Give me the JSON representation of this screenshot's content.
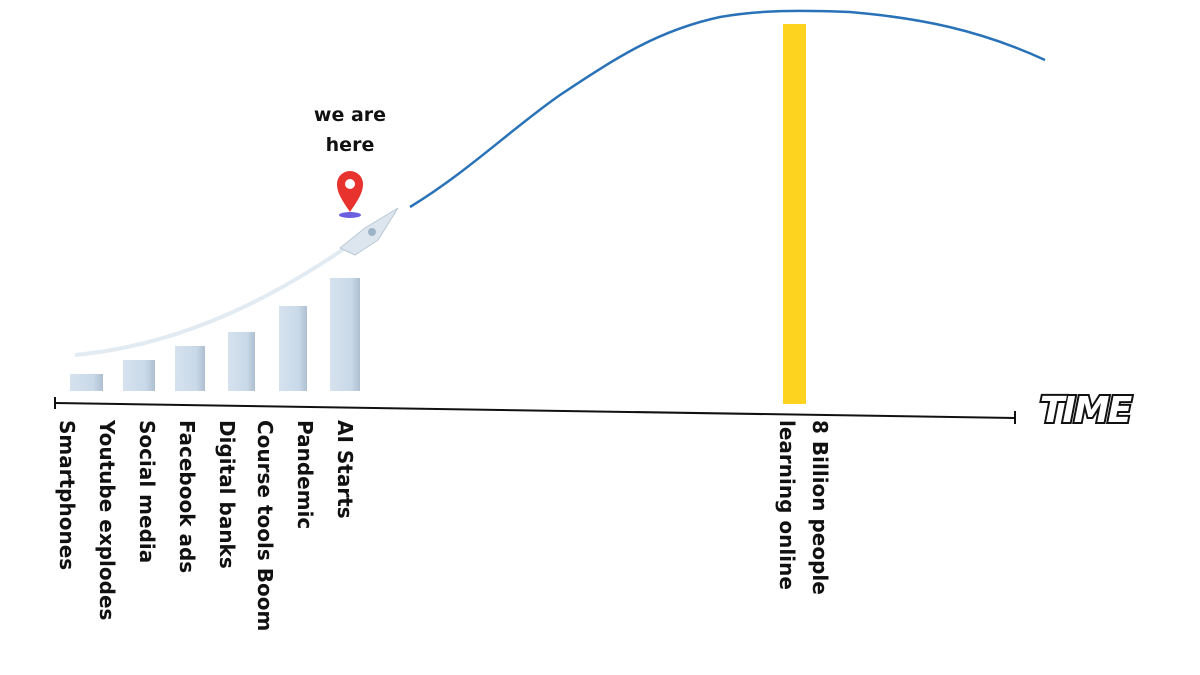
{
  "marker": {
    "lines": [
      "we are",
      "here"
    ]
  },
  "axis": {
    "label": "TIME"
  },
  "milestones": [
    "Smartphones",
    "Youtube explodes",
    "Social media",
    "Facebook ads",
    "Digital banks",
    "Course  tools Boom",
    "Pandemic",
    "AI Starts"
  ],
  "goal": {
    "lines": [
      "8 Billion people",
      "learning online"
    ]
  }
}
